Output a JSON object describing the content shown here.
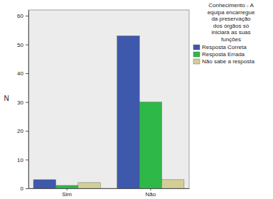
{
  "chart_data": {
    "type": "bar",
    "y_label": "N",
    "legend_title": "Conhecimento - A equipa encarregue da preservação dos órgãos só iniciará as suas funções",
    "categories": [
      "Sim",
      "Não"
    ],
    "series": [
      {
        "name": "Resposta Correta",
        "color": "#3e58ac",
        "values": [
          3,
          53
        ]
      },
      {
        "name": "Resposta Errada",
        "color": "#2eb848",
        "values": [
          1,
          30
        ]
      },
      {
        "name": "Não sabe a resposta",
        "color": "#d3ce97",
        "values": [
          2,
          3
        ]
      }
    ],
    "ylim": [
      0,
      62
    ],
    "yticks": [
      0,
      10,
      20,
      30,
      40,
      50,
      60
    ],
    "grid": false,
    "legend": "right"
  }
}
